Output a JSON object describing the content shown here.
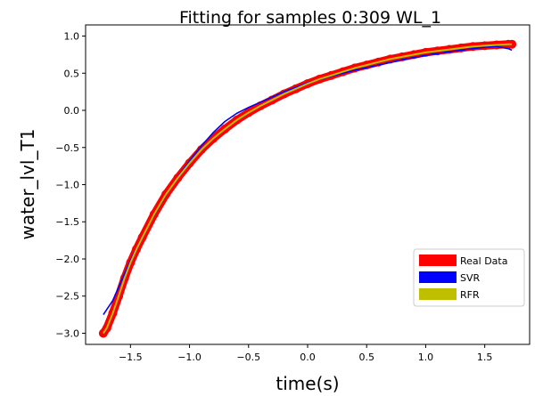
{
  "chart_data": {
    "type": "line",
    "title": "Fitting for samples 0:309 WL_1",
    "xlabel": "time(s)",
    "ylabel": "water_lvl_T1",
    "xlim": [
      -1.88,
      1.88
    ],
    "ylim": [
      -3.15,
      1.15
    ],
    "xticks": [
      -1.5,
      -1.0,
      -0.5,
      0.0,
      0.5,
      1.0,
      1.5
    ],
    "xtick_labels": [
      "−1.5",
      "−1.0",
      "−0.5",
      "0.0",
      "0.5",
      "1.0",
      "1.5"
    ],
    "yticks": [
      -3.0,
      -2.5,
      -2.0,
      -1.5,
      -1.0,
      -0.5,
      0.0,
      0.5,
      1.0
    ],
    "ytick_labels": [
      "−3.0",
      "−2.5",
      "−2.0",
      "−1.5",
      "−1.0",
      "−0.5",
      "0.0",
      "0.5",
      "1.0"
    ],
    "grid": false,
    "legend_position": "lower-right",
    "series": [
      {
        "name": "Real Data",
        "color": "#ff0000",
        "style": "thick-markers",
        "x": [
          -1.73,
          -1.7,
          -1.65,
          -1.6,
          -1.55,
          -1.5,
          -1.45,
          -1.4,
          -1.3,
          -1.2,
          -1.1,
          -1.0,
          -0.9,
          -0.8,
          -0.7,
          -0.6,
          -0.5,
          -0.4,
          -0.3,
          -0.2,
          -0.1,
          0.0,
          0.1,
          0.2,
          0.3,
          0.4,
          0.5,
          0.6,
          0.7,
          0.8,
          0.9,
          1.0,
          1.1,
          1.2,
          1.3,
          1.4,
          1.5,
          1.6,
          1.7,
          1.73
        ],
        "y": [
          -3.0,
          -2.93,
          -2.73,
          -2.5,
          -2.26,
          -2.05,
          -1.87,
          -1.71,
          -1.4,
          -1.13,
          -0.91,
          -0.71,
          -0.53,
          -0.38,
          -0.25,
          -0.13,
          -0.03,
          0.06,
          0.14,
          0.22,
          0.29,
          0.36,
          0.42,
          0.47,
          0.52,
          0.57,
          0.61,
          0.65,
          0.69,
          0.72,
          0.75,
          0.78,
          0.8,
          0.82,
          0.84,
          0.86,
          0.87,
          0.88,
          0.89,
          0.89
        ]
      },
      {
        "name": "SVR",
        "color": "#0000ff",
        "style": "line",
        "x": [
          -1.73,
          -1.65,
          -1.6,
          -1.55,
          -1.5,
          -1.4,
          -1.3,
          -1.2,
          -1.1,
          -1.0,
          -0.9,
          -0.8,
          -0.7,
          -0.6,
          -0.5,
          -0.4,
          -0.3,
          -0.2,
          -0.1,
          0.0,
          0.2,
          0.4,
          0.6,
          0.8,
          1.0,
          1.2,
          1.4,
          1.5,
          1.6,
          1.7,
          1.73
        ],
        "y": [
          -2.75,
          -2.56,
          -2.38,
          -2.2,
          -2.02,
          -1.7,
          -1.41,
          -1.14,
          -0.9,
          -0.68,
          -0.48,
          -0.3,
          -0.15,
          -0.04,
          0.04,
          0.11,
          0.18,
          0.25,
          0.31,
          0.37,
          0.46,
          0.54,
          0.61,
          0.68,
          0.74,
          0.79,
          0.83,
          0.85,
          0.86,
          0.83,
          0.81
        ]
      },
      {
        "name": "RFR",
        "color": "#bfbf00",
        "style": "line",
        "x": [
          -1.73,
          -1.7,
          -1.65,
          -1.6,
          -1.55,
          -1.5,
          -1.45,
          -1.4,
          -1.3,
          -1.2,
          -1.1,
          -1.0,
          -0.9,
          -0.8,
          -0.7,
          -0.6,
          -0.5,
          -0.4,
          -0.3,
          -0.2,
          -0.1,
          0.0,
          0.1,
          0.2,
          0.3,
          0.4,
          0.5,
          0.6,
          0.7,
          0.8,
          0.9,
          1.0,
          1.1,
          1.2,
          1.3,
          1.4,
          1.5,
          1.6,
          1.7,
          1.73
        ],
        "y": [
          -3.0,
          -2.93,
          -2.73,
          -2.5,
          -2.26,
          -2.05,
          -1.87,
          -1.71,
          -1.4,
          -1.13,
          -0.91,
          -0.71,
          -0.53,
          -0.38,
          -0.25,
          -0.13,
          -0.03,
          0.06,
          0.14,
          0.22,
          0.29,
          0.36,
          0.42,
          0.47,
          0.52,
          0.57,
          0.61,
          0.65,
          0.69,
          0.72,
          0.75,
          0.78,
          0.8,
          0.82,
          0.84,
          0.86,
          0.87,
          0.88,
          0.89,
          0.89
        ]
      }
    ]
  }
}
